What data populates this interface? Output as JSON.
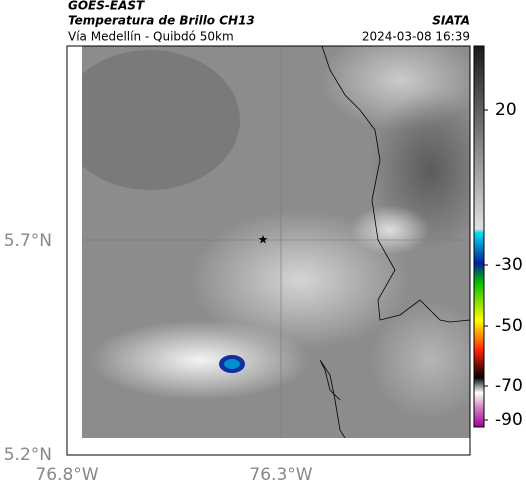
{
  "header": {
    "satellite": "GOES-EAST",
    "product": "Temperatura de Brillo CH13",
    "route": "Vía Medellín - Quibdó 50km",
    "source": "SIATA",
    "timestamp": "2024-03-08 16:39"
  },
  "axes": {
    "lat_labels": [
      "5.7°N",
      "5.2°N"
    ],
    "lon_labels": [
      "76.8°W",
      "76.3°W"
    ]
  },
  "colorbar": {
    "ticks": [
      20,
      -30,
      -50,
      -70,
      -90
    ]
  }
}
